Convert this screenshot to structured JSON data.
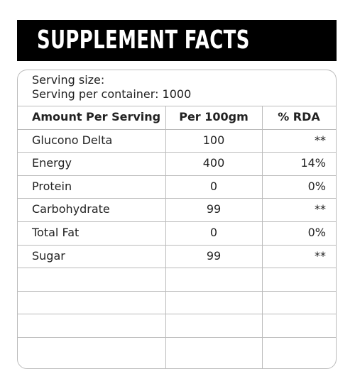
{
  "header": {
    "title": "SUPPLEMENT FACTS"
  },
  "serving": {
    "size": "Serving size:",
    "per_container": "Serving per container: 1000"
  },
  "table": {
    "columns": [
      "Amount Per Serving",
      "Per 100gm",
      "% RDA"
    ],
    "rows": [
      [
        "Glucono Delta",
        "100",
        "**"
      ],
      [
        "Energy",
        "400",
        "14%"
      ],
      [
        "Protein",
        "0",
        "0%"
      ],
      [
        "Carbohydrate",
        "99",
        "**"
      ],
      [
        "Total Fat",
        "0",
        "0%"
      ],
      [
        "Sugar",
        "99",
        "**"
      ]
    ]
  }
}
